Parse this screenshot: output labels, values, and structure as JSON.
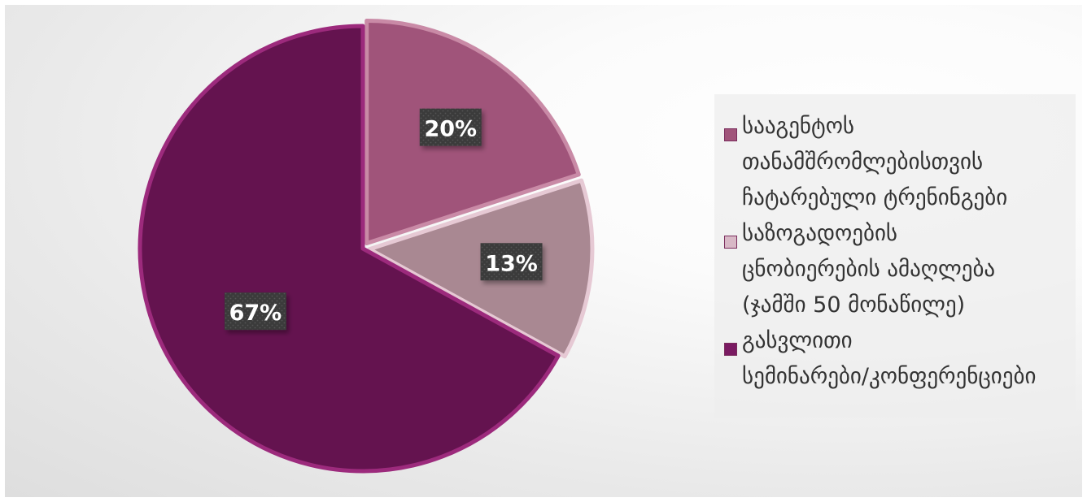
{
  "chart_data": {
    "type": "pie",
    "title": "",
    "slices": [
      {
        "label": "სააგენტოს თანამშრომლებისთვის ჩატარებული ტრენინგები",
        "value": 20,
        "value_label": "20%",
        "color": "#a0547a",
        "legend_lines": [
          "სააგენტოს",
          "თანამშრომლებისთვის",
          "ჩატარებული ტრენინგები"
        ]
      },
      {
        "label": "საზოგადოების ცნობიერების ამაღლება (ჯამში 50 მონაწილე)",
        "value": 13,
        "value_label": "13%",
        "color": "#a98892",
        "legend_lines": [
          "საზოგადოების",
          "ცნობიერების ამაღლება",
          "(ჯამში 50 მონაწილე)"
        ]
      },
      {
        "label": "გასვლითი სემინარები/კონფერენციები",
        "value": 67,
        "value_label": "67%",
        "color": "#64134f",
        "legend_lines": [
          "გასვლითი",
          "სემინარები/კონფერენციები"
        ]
      }
    ],
    "legend_position": "right"
  }
}
